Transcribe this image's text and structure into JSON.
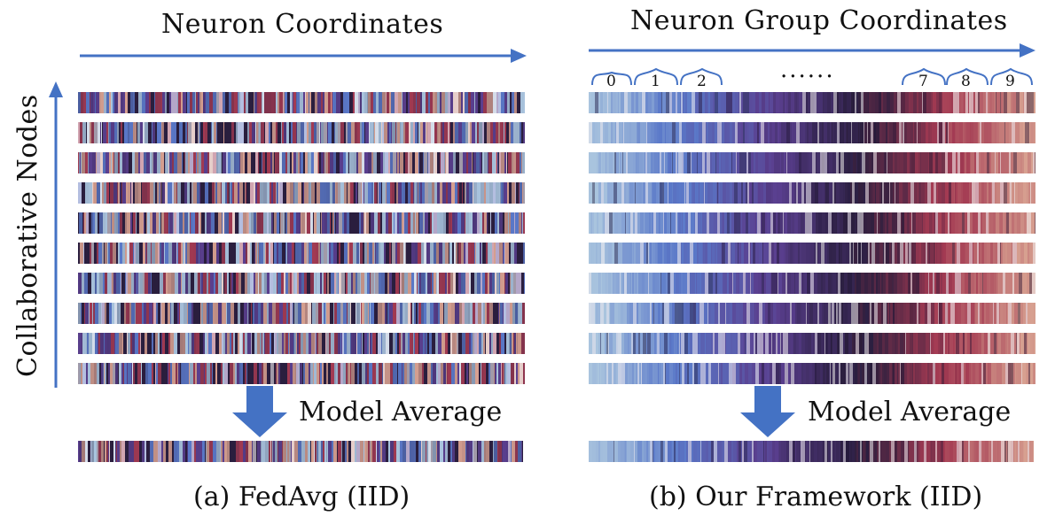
{
  "panel_a": {
    "top_label": "Neuron Coordinates",
    "side_label": "Collaborative Nodes",
    "avg_label": "Model Average",
    "caption": "(a) FedAvg (IID)"
  },
  "panel_b": {
    "top_label": "Neuron Group Coordinates",
    "avg_label": "Model Average",
    "caption": "(b) Our Framework (IID)",
    "group_labels_left": [
      "0",
      "1",
      "2"
    ],
    "ellipsis": "......",
    "group_labels_right": [
      "7",
      "8",
      "9"
    ]
  },
  "colors": {
    "arrow_blue": "#4472c4",
    "strip_light_blue": "#a9c4de",
    "strip_blue": "#5a78c8",
    "strip_purple": "#5a3f8f",
    "strip_dark": "#2a1e3e",
    "strip_red": "#a33a52",
    "strip_salmon": "#d7a090"
  }
}
